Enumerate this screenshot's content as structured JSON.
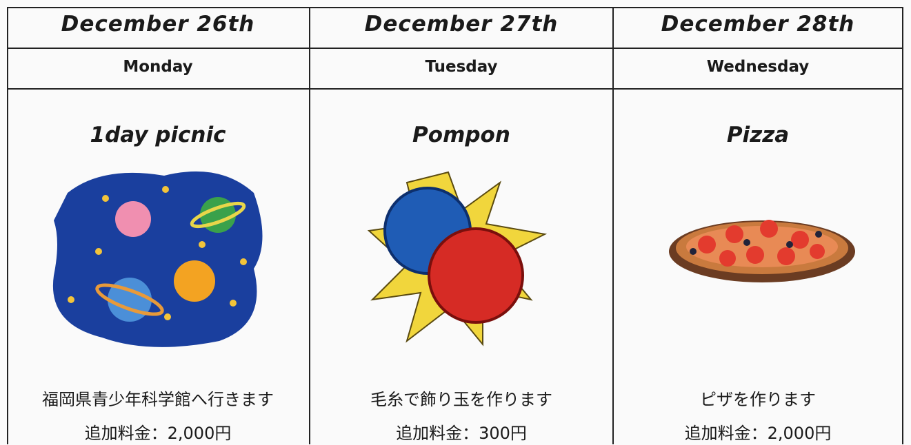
{
  "schedule": [
    {
      "date": "December 26th",
      "weekday": "Monday",
      "title": "1day picnic",
      "description": "福岡県青少年科学館へ行きます",
      "fee": "追加料金：2,000円"
    },
    {
      "date": "December 27th",
      "weekday": "Tuesday",
      "title": "Pompon",
      "description": "毛糸で飾り玉を作ります",
      "fee": "追加料金：300円"
    },
    {
      "date": "December 28th",
      "weekday": "Wednesday",
      "title": "Pizza",
      "description": "ピザを作ります",
      "fee": "追加料金：2,000円"
    }
  ]
}
